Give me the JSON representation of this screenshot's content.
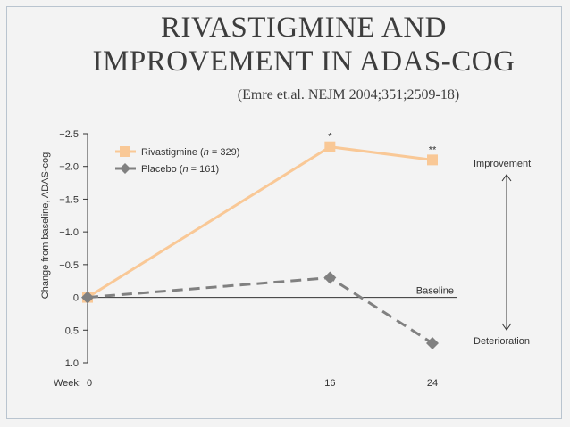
{
  "slide": {
    "title_line1": "RIVASTIGMINE AND",
    "title_line2": "IMPROVEMENT IN ADAS-COG",
    "subtitle": "(Emre et.al. NEJM 2004;351;2509-18)"
  },
  "chart_data": {
    "type": "line",
    "ylabel": "Change from baseline, ADAS-cog",
    "xlabel": "Week:",
    "x": [
      0,
      16,
      24
    ],
    "x_tick_labels": [
      "0",
      "16",
      "24"
    ],
    "y_ticks": [
      -2.5,
      -2.0,
      -1.5,
      -1.0,
      -0.5,
      0,
      0.5,
      1.0
    ],
    "y_tick_labels": [
      "−2.5",
      "−2.0",
      "−1.5",
      "−1.0",
      "−0.5",
      "0",
      "0.5",
      "1.0"
    ],
    "ylim": [
      -2.5,
      1.0
    ],
    "y_axis_inverted": true,
    "series": [
      {
        "name": "Rivastigmine (n = 329)",
        "name_parts": [
          "Rivastigmine (",
          "n",
          " = 329)"
        ],
        "values": [
          0,
          -2.3,
          -2.1
        ],
        "color": "#f9c896",
        "marker": "square",
        "dashed": false
      },
      {
        "name": "Placebo (n = 161)",
        "name_parts": [
          "Placebo (",
          "n",
          " = 161)"
        ],
        "values": [
          0,
          -0.3,
          0.7
        ],
        "color": "#808080",
        "marker": "diamond",
        "dashed": true
      }
    ],
    "annotations": [
      {
        "text": "*",
        "x": 16,
        "y": -2.3
      },
      {
        "text": "**",
        "x": 24,
        "y": -2.1
      }
    ],
    "baseline_label": "Baseline",
    "improvement_label": "Improvement",
    "deterioration_label": "Deterioration",
    "legend_position": "top-left",
    "grid": false
  }
}
